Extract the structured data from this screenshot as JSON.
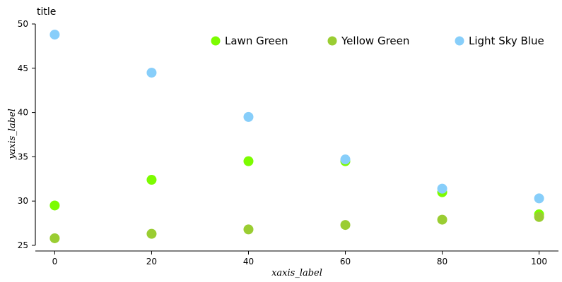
{
  "chart_data": {
    "type": "scatter",
    "title": "title",
    "xlabel": "xaxis_label",
    "ylabel": "yaxis_label",
    "xlim": [
      -4,
      104
    ],
    "ylim": [
      25,
      50
    ],
    "x_ticks": [
      0,
      20,
      40,
      60,
      80,
      100
    ],
    "y_ticks": [
      25,
      30,
      35,
      40,
      45,
      50
    ],
    "grid": false,
    "legend_position": "top-right",
    "series": [
      {
        "name": "Lawn Green",
        "color": "#7CFC00",
        "x": [
          0,
          20,
          40,
          60,
          80,
          100
        ],
        "y": [
          29.5,
          32.4,
          34.5,
          34.5,
          31.0,
          28.5
        ]
      },
      {
        "name": "Yellow Green",
        "color": "#9ACD32",
        "x": [
          0,
          20,
          40,
          60,
          80,
          100
        ],
        "y": [
          25.8,
          26.3,
          26.8,
          27.3,
          27.9,
          28.2
        ]
      },
      {
        "name": "Light Sky Blue",
        "color": "#87CEFA",
        "x": [
          0,
          20,
          40,
          60,
          80,
          100
        ],
        "y": [
          48.8,
          44.5,
          39.5,
          34.7,
          31.4,
          30.3
        ]
      }
    ]
  }
}
